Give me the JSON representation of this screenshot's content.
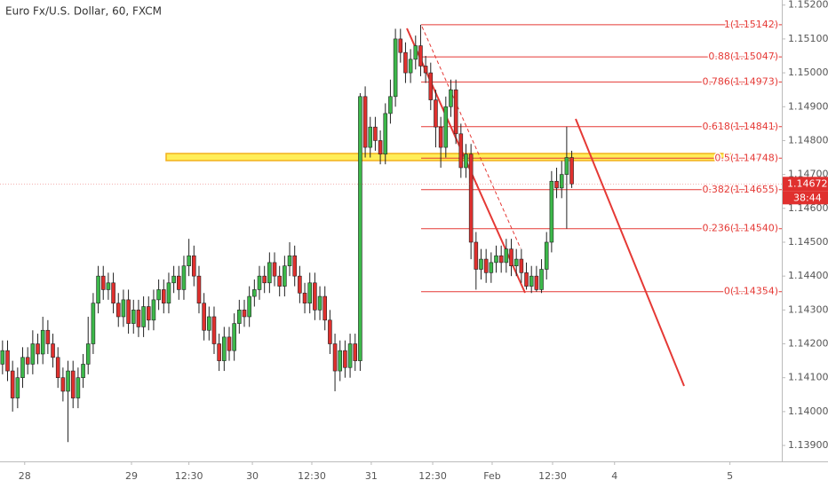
{
  "chart_data": {
    "type": "candlestick",
    "title": "Euro Fx/U.S. Dollar, 60, FXCM",
    "up_color": "#3cb84a",
    "down_color": "#e0302e",
    "open": [
      1.1414,
      1.1418,
      1.1412,
      1.1404,
      1.141,
      1.1416,
      1.1414,
      1.142,
      1.1417,
      1.1424,
      1.142,
      1.1416,
      1.141,
      1.1406,
      1.1412,
      1.1404,
      1.141,
      1.1414,
      1.142,
      1.1432,
      1.144,
      1.1436,
      1.1438,
      1.1432,
      1.1428,
      1.1433,
      1.1426,
      1.143,
      1.1425,
      1.1431,
      1.1427,
      1.1433,
      1.1436,
      1.1432,
      1.1438,
      1.144,
      1.1436,
      1.1443,
      1.1446,
      1.144,
      1.1432,
      1.1424,
      1.1428,
      1.142,
      1.1415,
      1.1422,
      1.1418,
      1.1426,
      1.143,
      1.1428,
      1.1434,
      1.1436,
      1.144,
      1.1438,
      1.1444,
      1.144,
      1.1437,
      1.1443,
      1.1446,
      1.144,
      1.1435,
      1.1432,
      1.1438,
      1.143,
      1.1434,
      1.1427,
      1.142,
      1.1412,
      1.1418,
      1.1413,
      1.142,
      1.1415,
      1.1493,
      1.1478,
      1.1484,
      1.148,
      1.1476,
      1.1488,
      1.1493,
      1.151,
      1.1506,
      1.15,
      1.1504,
      1.1508,
      1.1502,
      1.15,
      1.1492,
      1.1484,
      1.1478,
      1.149,
      1.1495,
      1.1482,
      1.1472,
      1.1476,
      1.145,
      1.1442,
      1.1445,
      1.1441,
      1.1444,
      1.1446,
      1.1444,
      1.1448,
      1.1443,
      1.1445,
      1.1441,
      1.1437,
      1.144,
      1.1436,
      1.1442,
      1.145,
      1.1468,
      1.1466,
      1.147,
      1.1475
    ],
    "high": [
      1.1421,
      1.1421,
      1.1415,
      1.1413,
      1.1419,
      1.1419,
      1.1424,
      1.1423,
      1.1428,
      1.1427,
      1.1423,
      1.1419,
      1.1413,
      1.1415,
      1.1415,
      1.1413,
      1.1417,
      1.1428,
      1.1435,
      1.1443,
      1.1443,
      1.1441,
      1.1441,
      1.1435,
      1.1436,
      1.1436,
      1.1433,
      1.1433,
      1.1434,
      1.1434,
      1.1436,
      1.1439,
      1.1439,
      1.1441,
      1.1443,
      1.1443,
      1.1446,
      1.1451,
      1.1449,
      1.1443,
      1.1435,
      1.1431,
      1.1431,
      1.1423,
      1.1425,
      1.1425,
      1.1429,
      1.1433,
      1.1433,
      1.1437,
      1.1439,
      1.1443,
      1.1443,
      1.1447,
      1.1447,
      1.1443,
      1.1446,
      1.145,
      1.1449,
      1.1443,
      1.1438,
      1.1441,
      1.1441,
      1.1437,
      1.1437,
      1.143,
      1.1423,
      1.1421,
      1.1421,
      1.1423,
      1.1423,
      1.1494,
      1.1496,
      1.1487,
      1.1487,
      1.1483,
      1.1491,
      1.1498,
      1.1513,
      1.1513,
      1.1509,
      1.1507,
      1.1511,
      1.15142,
      1.1505,
      1.1503,
      1.1495,
      1.1487,
      1.1493,
      1.1498,
      1.1498,
      1.1485,
      1.1479,
      1.1479,
      1.1453,
      1.1448,
      1.1448,
      1.1447,
      1.1449,
      1.1449,
      1.1451,
      1.1451,
      1.1448,
      1.1448,
      1.1444,
      1.1443,
      1.1443,
      1.1445,
      1.1453,
      1.1471,
      1.1472,
      1.1474,
      1.14841,
      1.1477
    ],
    "low": [
      1.1411,
      1.1409,
      1.14,
      1.1401,
      1.1407,
      1.1411,
      1.1411,
      1.1414,
      1.1414,
      1.1417,
      1.1413,
      1.1407,
      1.1403,
      1.1391,
      1.1401,
      1.1401,
      1.1407,
      1.1411,
      1.1417,
      1.1429,
      1.1433,
      1.1433,
      1.1429,
      1.1425,
      1.1425,
      1.1423,
      1.1423,
      1.1422,
      1.1422,
      1.1424,
      1.1424,
      1.143,
      1.1429,
      1.1429,
      1.1435,
      1.1433,
      1.1433,
      1.144,
      1.1437,
      1.1429,
      1.1421,
      1.1421,
      1.1417,
      1.1412,
      1.1412,
      1.1415,
      1.1415,
      1.1423,
      1.1425,
      1.1425,
      1.1431,
      1.1433,
      1.1435,
      1.1435,
      1.1437,
      1.1434,
      1.1434,
      1.144,
      1.1437,
      1.1432,
      1.1429,
      1.1429,
      1.1427,
      1.1427,
      1.1424,
      1.1417,
      1.1406,
      1.1409,
      1.141,
      1.141,
      1.1412,
      1.1412,
      1.1475,
      1.1475,
      1.1477,
      1.1473,
      1.1473,
      1.1485,
      1.149,
      1.1503,
      1.1497,
      1.1497,
      1.1501,
      1.1499,
      1.1497,
      1.1489,
      1.1478,
      1.1472,
      1.1475,
      1.1487,
      1.1479,
      1.1469,
      1.1469,
      1.1445,
      1.1436,
      1.1439,
      1.1438,
      1.1438,
      1.1441,
      1.1441,
      1.1441,
      1.144,
      1.144,
      1.1438,
      1.1436,
      1.1435,
      1.14354,
      1.1435,
      1.1439,
      1.1447,
      1.1463,
      1.1463,
      1.1454,
      1.1466
    ],
    "close": [
      1.1418,
      1.1412,
      1.1404,
      1.141,
      1.1416,
      1.1414,
      1.142,
      1.1417,
      1.1424,
      1.142,
      1.1416,
      1.141,
      1.1406,
      1.1412,
      1.1404,
      1.141,
      1.1414,
      1.142,
      1.1432,
      1.144,
      1.1436,
      1.1438,
      1.1432,
      1.1428,
      1.1433,
      1.1426,
      1.143,
      1.1425,
      1.1431,
      1.1427,
      1.1433,
      1.1436,
      1.1432,
      1.1438,
      1.144,
      1.1436,
      1.1443,
      1.1446,
      1.144,
      1.1432,
      1.1424,
      1.1428,
      1.142,
      1.1415,
      1.1422,
      1.1418,
      1.1426,
      1.143,
      1.1428,
      1.1434,
      1.1436,
      1.144,
      1.1438,
      1.1444,
      1.144,
      1.1437,
      1.1443,
      1.1446,
      1.144,
      1.1435,
      1.1432,
      1.1438,
      1.143,
      1.1434,
      1.1427,
      1.142,
      1.1412,
      1.1418,
      1.1413,
      1.142,
      1.1415,
      1.1493,
      1.1478,
      1.1484,
      1.148,
      1.1476,
      1.1488,
      1.1493,
      1.151,
      1.1506,
      1.15,
      1.1504,
      1.1508,
      1.1502,
      1.15,
      1.1492,
      1.1484,
      1.1478,
      1.149,
      1.1495,
      1.1482,
      1.1472,
      1.1476,
      1.145,
      1.1442,
      1.1445,
      1.1441,
      1.1444,
      1.1446,
      1.1444,
      1.1448,
      1.1443,
      1.1445,
      1.1441,
      1.1437,
      1.144,
      1.1436,
      1.1442,
      1.145,
      1.1468,
      1.1466,
      1.147,
      1.1475,
      1.14672
    ],
    "xlim": [
      -0.5,
      154.7
    ],
    "ylim": [
      1.13853,
      1.15215
    ],
    "xticks": [
      {
        "value": 4.4,
        "label": "28"
      },
      {
        "value": 25.6,
        "label": "29"
      },
      {
        "value": 37.0,
        "label": "12:30"
      },
      {
        "value": 49.6,
        "label": "30"
      },
      {
        "value": 61.4,
        "label": "12:30"
      },
      {
        "value": 73.2,
        "label": "31"
      },
      {
        "value": 85.4,
        "label": "12:30"
      },
      {
        "value": 97.2,
        "label": "Feb"
      },
      {
        "value": 109.2,
        "label": "12:30"
      },
      {
        "value": 121.5,
        "label": "4"
      },
      {
        "value": 144.4,
        "label": "5"
      }
    ],
    "yticks": [
      {
        "value": 1.139,
        "label": "1.13900"
      },
      {
        "value": 1.14,
        "label": "1.14000"
      },
      {
        "value": 1.141,
        "label": "1.14100"
      },
      {
        "value": 1.142,
        "label": "1.14200"
      },
      {
        "value": 1.143,
        "label": "1.14300"
      },
      {
        "value": 1.144,
        "label": "1.14400"
      },
      {
        "value": 1.145,
        "label": "1.14500"
      },
      {
        "value": 1.146,
        "label": "1.14600"
      },
      {
        "value": 1.147,
        "label": "1.14700"
      },
      {
        "value": 1.148,
        "label": "1.14800"
      },
      {
        "value": 1.149,
        "label": "1.14900"
      },
      {
        "value": 1.15,
        "label": "1.15000"
      },
      {
        "value": 1.151,
        "label": "1.15100"
      },
      {
        "value": 1.152,
        "label": "1.15200"
      }
    ],
    "fib_levels": [
      {
        "value": 1.15142,
        "label": "1(1.15142)"
      },
      {
        "value": 1.15047,
        "label": "0.88(1.15047)"
      },
      {
        "value": 1.14973,
        "label": "0.786(1.14973)"
      },
      {
        "value": 1.14841,
        "label": "0.618(1.14841)"
      },
      {
        "value": 1.14748,
        "label": "0.5(1.14748)"
      },
      {
        "value": 1.14655,
        "label": "0.382(1.14655)"
      },
      {
        "value": 1.1454,
        "label": "0.236(1.14540)"
      },
      {
        "value": 1.14354,
        "label": "0(1.14354)"
      }
    ],
    "fib_color": "#e53935",
    "last_price": 1.14672,
    "countdown": "38:44"
  }
}
